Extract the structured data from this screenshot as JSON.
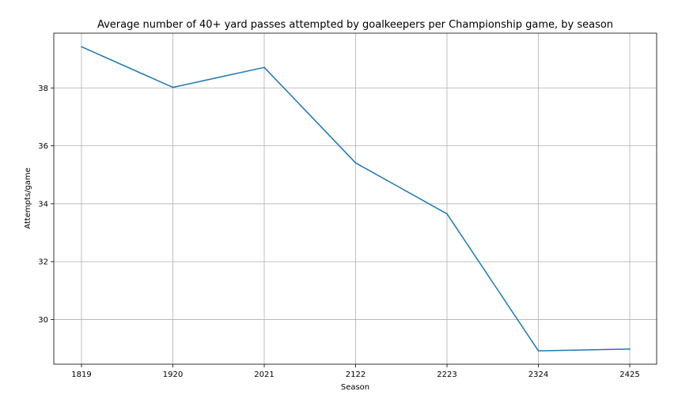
{
  "chart_data": {
    "type": "line",
    "title": "Average number of 40+ yard passes attempted by goalkeepers per Championship game, by season",
    "xlabel": "Season",
    "ylabel": "Attempts/game",
    "categories": [
      "1819",
      "1920",
      "2021",
      "2122",
      "2223",
      "2324",
      "2425"
    ],
    "series": [
      {
        "values": [
          39.42,
          38.02,
          38.71,
          35.41,
          33.65,
          28.92,
          28.98
        ],
        "color": "#1f77b4"
      }
    ],
    "ylim": [
      28.46,
      39.89
    ],
    "yticks": [
      30,
      32,
      34,
      36,
      38
    ],
    "grid": true,
    "legend": "none"
  }
}
